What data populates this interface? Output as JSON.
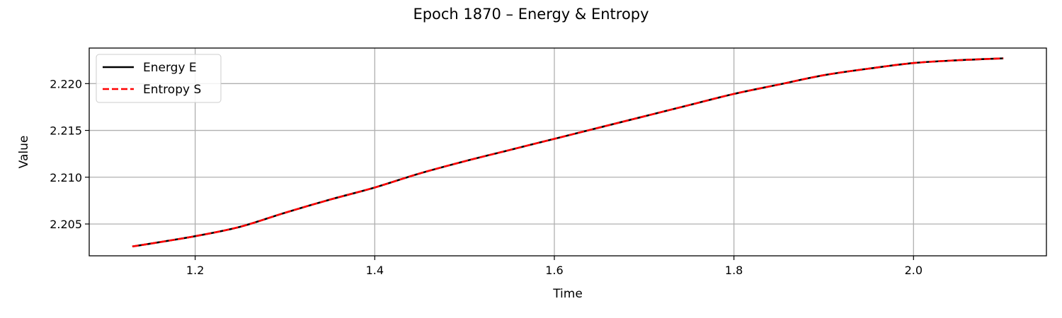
{
  "chart_data": {
    "type": "line",
    "title": "Epoch 1870 – Energy & Entropy",
    "xlabel": "Time",
    "ylabel": "Value",
    "xlim": [
      1.082,
      2.148
    ],
    "ylim": [
      2.2016,
      2.2238
    ],
    "xticks": [
      1.2,
      1.4,
      1.6,
      1.8,
      2.0
    ],
    "xtick_labels": [
      "1.2",
      "1.4",
      "1.6",
      "1.8",
      "2.0"
    ],
    "yticks": [
      2.205,
      2.21,
      2.215,
      2.22
    ],
    "ytick_labels": [
      "2.205",
      "2.210",
      "2.215",
      "2.220"
    ],
    "grid": true,
    "legend_position": "top-left",
    "series": [
      {
        "name": "Energy E",
        "color": "#000000",
        "style": "solid",
        "x": [
          1.13,
          1.15,
          1.2,
          1.25,
          1.3,
          1.35,
          1.4,
          1.45,
          1.5,
          1.55,
          1.6,
          1.65,
          1.7,
          1.75,
          1.8,
          1.85,
          1.9,
          1.95,
          2.0,
          2.05,
          2.1
        ],
        "y": [
          2.2026,
          2.2029,
          2.2037,
          2.2047,
          2.2062,
          2.2076,
          2.2089,
          2.2104,
          2.2117,
          2.2129,
          2.2141,
          2.2153,
          2.2165,
          2.2177,
          2.2189,
          2.2199,
          2.2209,
          2.2216,
          2.2222,
          2.2225,
          2.2227
        ]
      },
      {
        "name": "Entropy S",
        "color": "#ff0000",
        "style": "dashed",
        "x": [
          1.13,
          1.15,
          1.2,
          1.25,
          1.3,
          1.35,
          1.4,
          1.45,
          1.5,
          1.55,
          1.6,
          1.65,
          1.7,
          1.75,
          1.8,
          1.85,
          1.9,
          1.95,
          2.0,
          2.05,
          2.1
        ],
        "y": [
          2.2026,
          2.2029,
          2.2037,
          2.2047,
          2.2062,
          2.2076,
          2.2089,
          2.2104,
          2.2117,
          2.2129,
          2.2141,
          2.2153,
          2.2165,
          2.2177,
          2.2189,
          2.2199,
          2.2209,
          2.2216,
          2.2222,
          2.2225,
          2.2227
        ]
      }
    ]
  }
}
